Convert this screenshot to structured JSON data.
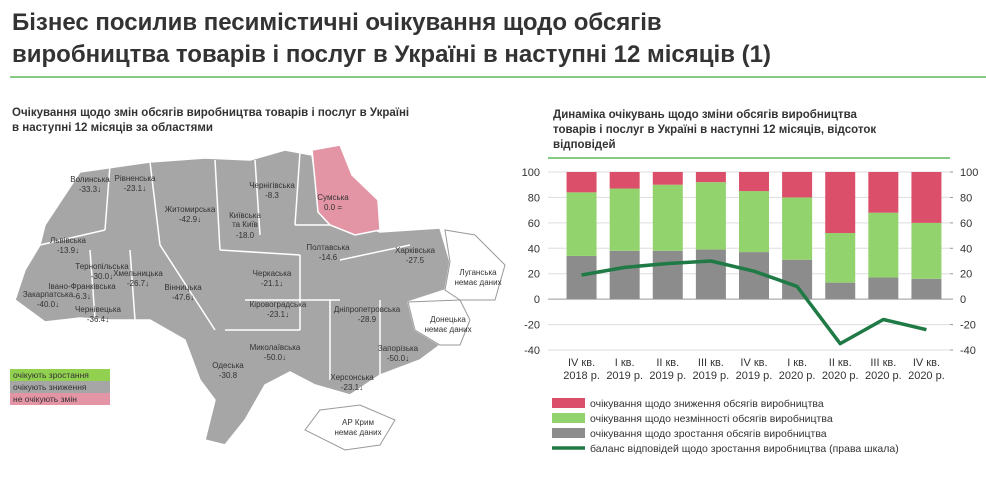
{
  "header": {
    "title_lines": [
      "Бізнес посилив песимістичні очікування щодо обсягів",
      "виробництва товарів і послуг в Україні в наступні 12 місяців (1)"
    ]
  },
  "map": {
    "title_lines": [
      "Очікування щодо змін обсягів виробництва товарів і послуг в Україні",
      "в наступні 12 місяців за областями"
    ],
    "regions": [
      {
        "name": "Волинська",
        "value": "-33.3↓"
      },
      {
        "name": "Рівненська",
        "value": "-23.1↓"
      },
      {
        "name": "Житомирська",
        "value": "-42.9↓"
      },
      {
        "name": "Чернігівська",
        "value": "-8.3"
      },
      {
        "name": "Сумська",
        "value": "0.0 ="
      },
      {
        "name": "Київська та Київ",
        "value": "-18.0"
      },
      {
        "name": "Полтавська",
        "value": "-14.6"
      },
      {
        "name": "Харківська",
        "value": "-27.5"
      },
      {
        "name": "Луганська",
        "value": "немає даних"
      },
      {
        "name": "Львівська",
        "value": "-13.9↓"
      },
      {
        "name": "Тернопільська",
        "value": "-30.0↓"
      },
      {
        "name": "Хмельницька",
        "value": "-26.7↓"
      },
      {
        "name": "Закарпатська",
        "value": "-40.0↓"
      },
      {
        "name": "Івано-Франківська",
        "value": "-6.3↓"
      },
      {
        "name": "Чернівецька",
        "value": "-36.4↓"
      },
      {
        "name": "Вінницька",
        "value": "-47.6↓"
      },
      {
        "name": "Черкаська",
        "value": "-21.1↓"
      },
      {
        "name": "Кіровоградська",
        "value": "-23.1↓"
      },
      {
        "name": "Дніпропетровська",
        "value": "-28.9"
      },
      {
        "name": "Донецька",
        "value": "немає даних"
      },
      {
        "name": "Одеська",
        "value": "-30.8"
      },
      {
        "name": "Миколаївська",
        "value": "-50.0↓"
      },
      {
        "name": "Запорізька",
        "value": "-50.0↓"
      },
      {
        "name": "Херсонська",
        "value": "-23.1↓"
      },
      {
        "name": "АР Крим",
        "value": "немає даних"
      }
    ],
    "legend": [
      {
        "label": "очікують зростання",
        "color": "#92d050"
      },
      {
        "label": "очікують зниження",
        "color": "#a6a6a6"
      },
      {
        "label": "не очікують змін",
        "color": "#e495a5"
      }
    ]
  },
  "chart_data": {
    "type": "stacked-bar-line",
    "title_lines": [
      "Динаміка очікувань щодо зміни обсягів виробництва",
      "товарів і послуг в Україні в наступні 12 місяців, відсоток",
      "відповідей"
    ],
    "categories": [
      "IV кв.\n2018 р.",
      "I кв.\n2019 р.",
      "II кв.\n2019 р.",
      "III кв.\n2019 р.",
      "IV кв.\n2019 р.",
      "I кв.\n2020 р.",
      "II кв.\n2020 р.",
      "III кв.\n2020 р.",
      "IV кв.\n2020 р."
    ],
    "series": [
      {
        "name": "очікування щодо зниження обсягів виробництва",
        "color": "#dc4f6a",
        "values": [
          16,
          13,
          10,
          8,
          15,
          20,
          48,
          32,
          40
        ]
      },
      {
        "name": "очікування щодо незмінності обсягів виробництва",
        "color": "#92d36e",
        "values": [
          50,
          49,
          52,
          53,
          48,
          49,
          39,
          51,
          44
        ]
      },
      {
        "name": "очікування щодо зростання обсягів виробництва",
        "color": "#8c8c8c",
        "values": [
          34,
          38,
          38,
          39,
          37,
          31,
          13,
          17,
          16
        ]
      },
      {
        "name": "баланс відповідей щодо зростання виробництва (права шкала)",
        "color": "#1f7a45",
        "axis": "y2",
        "values": [
          19,
          25,
          28,
          30,
          22,
          10,
          -35,
          -16,
          -24
        ]
      }
    ],
    "ylim": [
      -40,
      100
    ],
    "yticks": [
      -40,
      -20,
      0,
      20,
      40,
      60,
      80,
      100
    ],
    "y2lim": [
      -40,
      100
    ],
    "y2ticks": [
      -40,
      -20,
      0,
      20,
      40,
      60,
      80,
      100
    ],
    "grid": true
  }
}
